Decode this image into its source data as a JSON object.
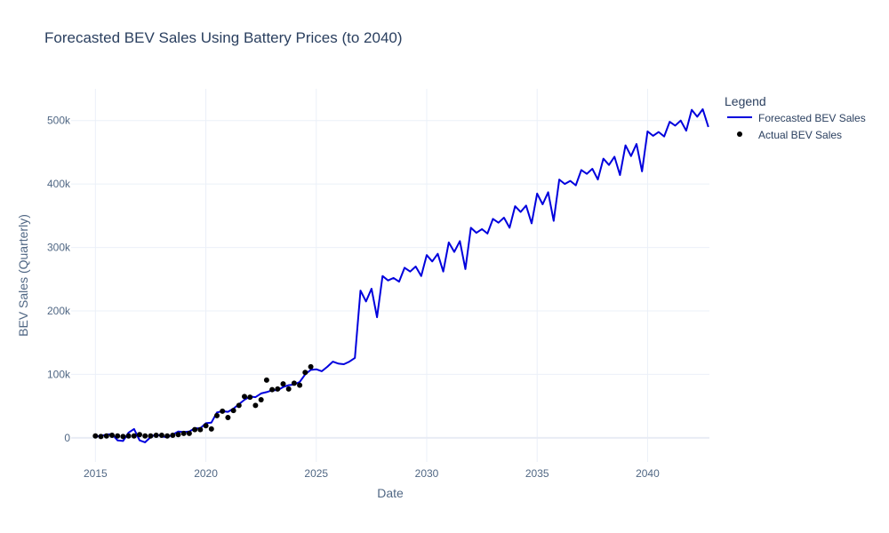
{
  "chart_data": {
    "type": "line",
    "title": "Forecasted BEV Sales Using Battery Prices (to 2040)",
    "xlabel": "Date",
    "ylabel": "BEV Sales (Quarterly)",
    "xlim": [
      2013.9,
      2042.8
    ],
    "ylim": [
      -38000,
      550000
    ],
    "x_ticks": [
      {
        "value": 2015,
        "label": "2015"
      },
      {
        "value": 2020,
        "label": "2020"
      },
      {
        "value": 2025,
        "label": "2025"
      },
      {
        "value": 2030,
        "label": "2030"
      },
      {
        "value": 2035,
        "label": "2035"
      },
      {
        "value": 2040,
        "label": "2040"
      }
    ],
    "y_ticks": [
      {
        "value": 0,
        "label": "0"
      },
      {
        "value": 100000,
        "label": "100k"
      },
      {
        "value": 200000,
        "label": "200k"
      },
      {
        "value": 300000,
        "label": "300k"
      },
      {
        "value": 400000,
        "label": "400k"
      },
      {
        "value": 500000,
        "label": "500k"
      }
    ],
    "legend": {
      "title": "Legend",
      "placement": "top-right"
    },
    "series": [
      {
        "name": "Forecasted BEV Sales",
        "mode": "line",
        "color": "#0000dd",
        "x": [
          2015.0,
          2015.25,
          2015.5,
          2015.75,
          2016.0,
          2016.25,
          2016.5,
          2016.75,
          2017.0,
          2017.25,
          2017.5,
          2017.75,
          2018.0,
          2018.25,
          2018.5,
          2018.75,
          2019.0,
          2019.25,
          2019.5,
          2019.75,
          2020.0,
          2020.25,
          2020.5,
          2020.75,
          2021.0,
          2021.25,
          2021.5,
          2021.75,
          2022.0,
          2022.25,
          2022.5,
          2022.75,
          2023.0,
          2023.25,
          2023.5,
          2023.75,
          2024.0,
          2024.25,
          2024.5,
          2024.75,
          2025.0,
          2025.25,
          2025.5,
          2025.75,
          2026.0,
          2026.25,
          2026.5,
          2026.75,
          2027.0,
          2027.25,
          2027.5,
          2027.75,
          2028.0,
          2028.25,
          2028.5,
          2028.75,
          2029.0,
          2029.25,
          2029.5,
          2029.75,
          2030.0,
          2030.25,
          2030.5,
          2030.75,
          2031.0,
          2031.25,
          2031.5,
          2031.75,
          2032.0,
          2032.25,
          2032.5,
          2032.75,
          2033.0,
          2033.25,
          2033.5,
          2033.75,
          2034.0,
          2034.25,
          2034.5,
          2034.75,
          2035.0,
          2035.25,
          2035.5,
          2035.75,
          2036.0,
          2036.25,
          2036.5,
          2036.75,
          2037.0,
          2037.25,
          2037.5,
          2037.75,
          2038.0,
          2038.25,
          2038.5,
          2038.75,
          2039.0,
          2039.25,
          2039.5,
          2039.75,
          2040.0,
          2040.25,
          2040.5,
          2040.75,
          2041.0,
          2041.25,
          2041.5,
          2041.75,
          2042.0,
          2042.25,
          2042.5,
          2042.75
        ],
        "y": [
          2000,
          3000,
          5000,
          6000,
          -4000,
          -5000,
          8000,
          14000,
          -4000,
          -7000,
          1000,
          6000,
          2000,
          1000,
          5000,
          10000,
          9000,
          10000,
          15000,
          15000,
          23000,
          24000,
          40000,
          42000,
          41000,
          46000,
          53000,
          60000,
          65000,
          64000,
          70000,
          72000,
          75000,
          75000,
          80000,
          83000,
          84000,
          88000,
          100000,
          107000,
          108000,
          105000,
          112000,
          120000,
          117000,
          116000,
          120000,
          126000,
          232000,
          215000,
          235000,
          190000,
          255000,
          248000,
          252000,
          246000,
          268000,
          262000,
          270000,
          255000,
          288000,
          278000,
          290000,
          262000,
          308000,
          293000,
          310000,
          266000,
          331000,
          323000,
          329000,
          322000,
          345000,
          339000,
          347000,
          331000,
          365000,
          356000,
          366000,
          338000,
          385000,
          368000,
          387000,
          342000,
          407000,
          400000,
          405000,
          398000,
          422000,
          416000,
          424000,
          407000,
          440000,
          430000,
          443000,
          414000,
          461000,
          444000,
          463000,
          420000,
          483000,
          476000,
          482000,
          475000,
          498000,
          492000,
          500000,
          484000,
          517000,
          506000,
          518000,
          490000
        ]
      },
      {
        "name": "Actual BEV Sales",
        "mode": "markers",
        "color": "#000000",
        "x": [
          2015.0,
          2015.25,
          2015.5,
          2015.75,
          2016.0,
          2016.25,
          2016.5,
          2016.75,
          2017.0,
          2017.25,
          2017.5,
          2017.75,
          2018.0,
          2018.25,
          2018.5,
          2018.75,
          2019.0,
          2019.25,
          2019.5,
          2019.75,
          2020.0,
          2020.25,
          2020.5,
          2020.75,
          2021.0,
          2021.25,
          2021.5,
          2021.75,
          2022.0,
          2022.25,
          2022.5,
          2022.75,
          2023.0,
          2023.25,
          2023.5,
          2023.75,
          2024.0,
          2024.25,
          2024.5,
          2024.75
        ],
        "y": [
          3000,
          2000,
          3000,
          4000,
          3000,
          2000,
          3000,
          3000,
          5000,
          3000,
          3000,
          4000,
          4000,
          3000,
          4000,
          5000,
          7000,
          7000,
          13000,
          13000,
          19000,
          14000,
          35000,
          42000,
          32000,
          43000,
          51000,
          65000,
          64000,
          51000,
          60000,
          91000,
          76000,
          77000,
          85000,
          77000,
          86000,
          83000,
          103000,
          112000
        ]
      }
    ]
  }
}
